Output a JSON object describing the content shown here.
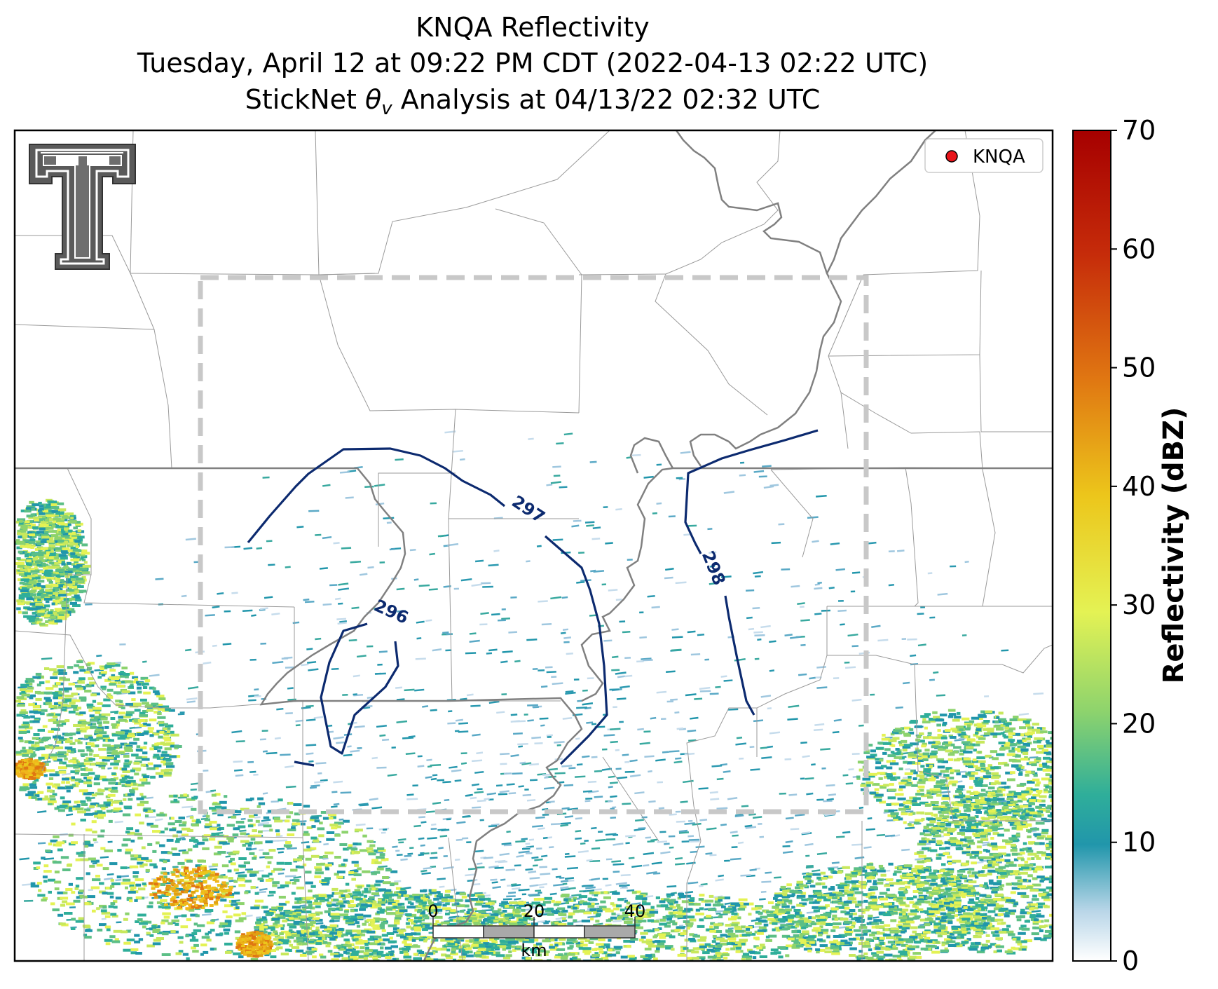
{
  "title": {
    "line1": "KNQA Reflectivity",
    "line2": "Tuesday, April 12 at 09:22 PM CDT (2022-04-13 02:22 UTC)",
    "line3_prefix": "StickNet ",
    "line3_symbol": "θ",
    "line3_subscript": "v",
    "line3_suffix": " Analysis at 04/13/22 02:32 UTC"
  },
  "legend": {
    "marker_color": "#e8141a",
    "label": "KNQA"
  },
  "colorbar": {
    "label": "Reflectivity (dBZ)",
    "ticks": [
      "0",
      "10",
      "20",
      "30",
      "40",
      "50",
      "60",
      "70"
    ],
    "range": [
      0,
      70
    ],
    "stops": [
      "#ffffff",
      "#b9d6e8",
      "#2196ab",
      "#2fae9a",
      "#8dd36d",
      "#e4f254",
      "#ecc61b",
      "#e07712",
      "#c62c0a",
      "#a60000"
    ]
  },
  "scale_bar": {
    "labels": [
      "0",
      "20",
      "40"
    ],
    "unit": "km"
  },
  "contours": [
    {
      "value": "296",
      "label": "296"
    },
    {
      "value": "297",
      "label": "297"
    },
    {
      "value": "298",
      "label": "298"
    }
  ],
  "logo": {
    "name": "texas-tech-double-t-logo"
  },
  "colors": {
    "contour": "#0c2a6f",
    "analysis_box": "#c8c8c8",
    "borders": "#808080",
    "county_lines": "#9a9a9a"
  }
}
